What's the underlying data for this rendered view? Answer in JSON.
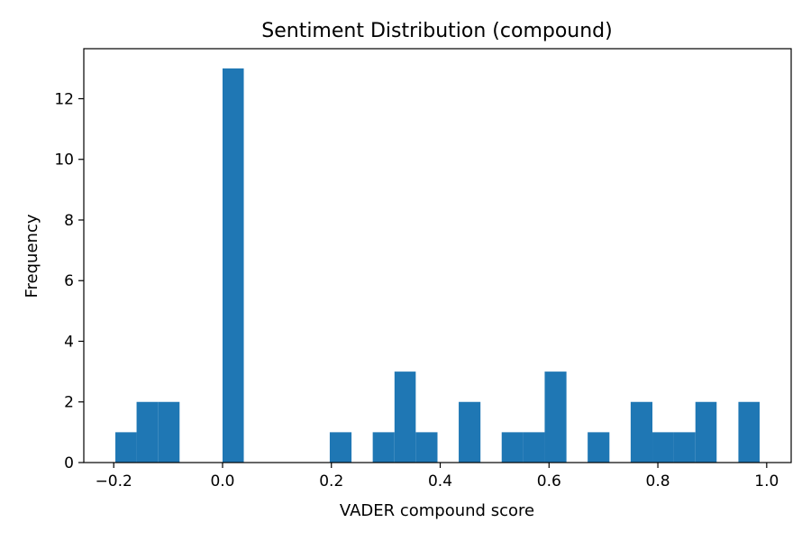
{
  "chart_data": {
    "type": "bar",
    "title": "Sentiment Distribution (compound)",
    "xlabel": "VADER compound score",
    "ylabel": "Frequency",
    "xlim": [
      -0.255,
      1.045
    ],
    "ylim": [
      0,
      13.65
    ],
    "grid": false,
    "legend": "none",
    "bar_color": "#1f77b4",
    "x_ticks": [
      {
        "value": -0.2,
        "label": "−0.2"
      },
      {
        "value": 0.0,
        "label": "0.0"
      },
      {
        "value": 0.2,
        "label": "0.2"
      },
      {
        "value": 0.4,
        "label": "0.4"
      },
      {
        "value": 0.6,
        "label": "0.6"
      },
      {
        "value": 0.8,
        "label": "0.8"
      },
      {
        "value": 1.0,
        "label": "1.0"
      }
    ],
    "y_ticks": [
      {
        "value": 0,
        "label": "0"
      },
      {
        "value": 2,
        "label": "2"
      },
      {
        "value": 4,
        "label": "4"
      },
      {
        "value": 6,
        "label": "6"
      },
      {
        "value": 8,
        "label": "8"
      },
      {
        "value": 10,
        "label": "10"
      },
      {
        "value": 12,
        "label": "12"
      }
    ],
    "bins": [
      {
        "start": -0.197,
        "end": -0.158,
        "count": 1
      },
      {
        "start": -0.158,
        "end": -0.118,
        "count": 2
      },
      {
        "start": -0.118,
        "end": -0.079,
        "count": 2
      },
      {
        "start": -0.079,
        "end": -0.039,
        "count": 0
      },
      {
        "start": -0.039,
        "end": 0.0,
        "count": 0
      },
      {
        "start": 0.0,
        "end": 0.039,
        "count": 13
      },
      {
        "start": 0.039,
        "end": 0.079,
        "count": 0
      },
      {
        "start": 0.079,
        "end": 0.118,
        "count": 0
      },
      {
        "start": 0.118,
        "end": 0.158,
        "count": 0
      },
      {
        "start": 0.158,
        "end": 0.197,
        "count": 0
      },
      {
        "start": 0.197,
        "end": 0.237,
        "count": 1
      },
      {
        "start": 0.237,
        "end": 0.276,
        "count": 0
      },
      {
        "start": 0.276,
        "end": 0.316,
        "count": 1
      },
      {
        "start": 0.316,
        "end": 0.355,
        "count": 3
      },
      {
        "start": 0.355,
        "end": 0.395,
        "count": 1
      },
      {
        "start": 0.395,
        "end": 0.434,
        "count": 0
      },
      {
        "start": 0.434,
        "end": 0.474,
        "count": 2
      },
      {
        "start": 0.474,
        "end": 0.513,
        "count": 0
      },
      {
        "start": 0.513,
        "end": 0.553,
        "count": 1
      },
      {
        "start": 0.553,
        "end": 0.592,
        "count": 1
      },
      {
        "start": 0.592,
        "end": 0.632,
        "count": 3
      },
      {
        "start": 0.632,
        "end": 0.671,
        "count": 0
      },
      {
        "start": 0.671,
        "end": 0.711,
        "count": 1
      },
      {
        "start": 0.711,
        "end": 0.75,
        "count": 0
      },
      {
        "start": 0.75,
        "end": 0.79,
        "count": 2
      },
      {
        "start": 0.79,
        "end": 0.829,
        "count": 1
      },
      {
        "start": 0.829,
        "end": 0.869,
        "count": 1
      },
      {
        "start": 0.869,
        "end": 0.908,
        "count": 2
      },
      {
        "start": 0.908,
        "end": 0.948,
        "count": 0
      },
      {
        "start": 0.948,
        "end": 0.987,
        "count": 2
      }
    ]
  }
}
